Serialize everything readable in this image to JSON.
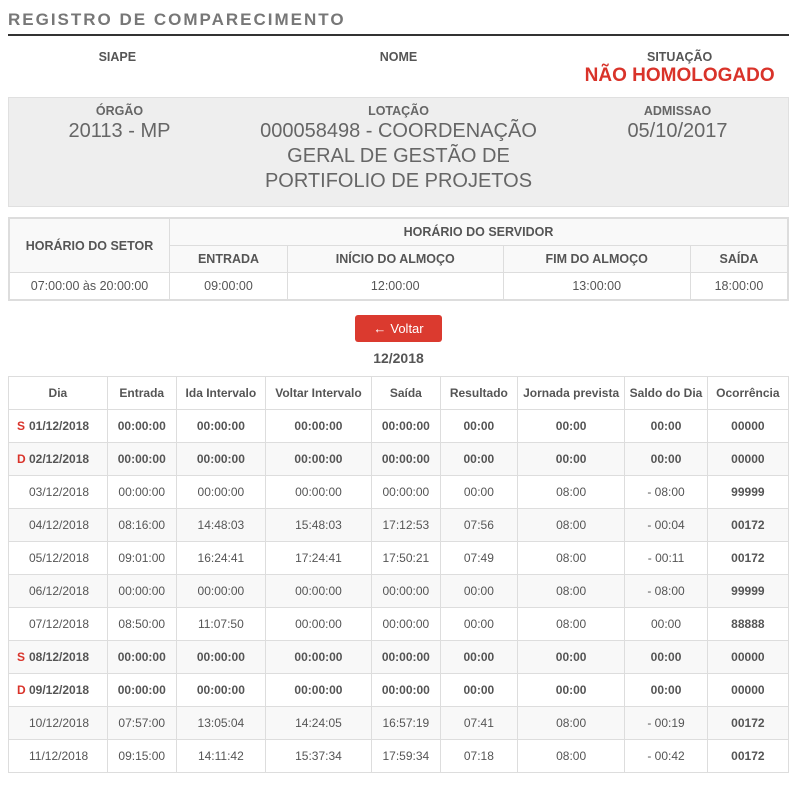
{
  "page_title": "REGISTRO DE COMPARECIMENTO",
  "header": {
    "siape_label": "SIAPE",
    "nome_label": "NOME",
    "situacao_label": "SITUAÇÃO",
    "situacao_value": "NÃO HOMOLOGADO"
  },
  "info": {
    "orgao_label": "ÓRGÃO",
    "orgao_value": "20113 - MP",
    "lotacao_label": "LOTAÇÃO",
    "lotacao_value": "000058498 - COORDENAÇÃO GERAL DE GESTÃO DE PORTIFOLIO DE PROJETOS",
    "admissao_label": "ADMISSAO",
    "admissao_value": "05/10/2017"
  },
  "schedule": {
    "setor_label": "HORÁRIO DO SETOR",
    "servidor_label": "HORÁRIO DO SERVIDOR",
    "cols": {
      "entrada": "ENTRADA",
      "inicio_almoco": "INÍCIO DO ALMOÇO",
      "fim_almoco": "FIM DO ALMOÇO",
      "saida": "SAÍDA"
    },
    "setor_value": "07:00:00 às 20:00:00",
    "values": {
      "entrada": "09:00:00",
      "inicio_almoco": "12:00:00",
      "fim_almoco": "13:00:00",
      "saida": "18:00:00"
    }
  },
  "voltar_label": "Voltar",
  "month": "12/2018",
  "attend": {
    "columns": [
      "Dia",
      "Entrada",
      "Ida Intervalo",
      "Voltar Intervalo",
      "Saída",
      "Resultado",
      "Jornada prevista",
      "Saldo do Dia",
      "Ocorrência"
    ],
    "rows": [
      {
        "mark": "S",
        "date": "01/12/2018",
        "weekend": true,
        "entrada": "00:00:00",
        "ida": "00:00:00",
        "voltar": "00:00:00",
        "saida": "00:00:00",
        "resultado": "00:00",
        "jornada": "00:00",
        "saldo": "00:00",
        "saldo_neg": false,
        "ocorr": "00000",
        "occ_red": false
      },
      {
        "mark": "D",
        "date": "02/12/2018",
        "weekend": true,
        "entrada": "00:00:00",
        "ida": "00:00:00",
        "voltar": "00:00:00",
        "saida": "00:00:00",
        "resultado": "00:00",
        "jornada": "00:00",
        "saldo": "00:00",
        "saldo_neg": false,
        "ocorr": "00000",
        "occ_red": false
      },
      {
        "mark": "",
        "date": "03/12/2018",
        "weekend": false,
        "entrada": "00:00:00",
        "ida": "00:00:00",
        "voltar": "00:00:00",
        "saida": "00:00:00",
        "resultado": "00:00",
        "jornada": "08:00",
        "saldo": "- 08:00",
        "saldo_neg": true,
        "ocorr": "99999",
        "occ_red": true
      },
      {
        "mark": "",
        "date": "04/12/2018",
        "weekend": false,
        "entrada": "08:16:00",
        "ida": "14:48:03",
        "voltar": "15:48:03",
        "saida": "17:12:53",
        "resultado": "07:56",
        "jornada": "08:00",
        "saldo": "- 00:04",
        "saldo_neg": true,
        "ocorr": "00172",
        "occ_red": false
      },
      {
        "mark": "",
        "date": "05/12/2018",
        "weekend": false,
        "entrada": "09:01:00",
        "ida": "16:24:41",
        "voltar": "17:24:41",
        "saida": "17:50:21",
        "resultado": "07:49",
        "jornada": "08:00",
        "saldo": "- 00:11",
        "saldo_neg": true,
        "ocorr": "00172",
        "occ_red": false
      },
      {
        "mark": "",
        "date": "06/12/2018",
        "weekend": false,
        "entrada": "00:00:00",
        "ida": "00:00:00",
        "voltar": "00:00:00",
        "saida": "00:00:00",
        "resultado": "00:00",
        "jornada": "08:00",
        "saldo": "- 08:00",
        "saldo_neg": true,
        "ocorr": "99999",
        "occ_red": true
      },
      {
        "mark": "",
        "date": "07/12/2018",
        "weekend": false,
        "entrada": "08:50:00",
        "ida": "11:07:50",
        "voltar": "00:00:00",
        "saida": "00:00:00",
        "resultado": "00:00",
        "jornada": "08:00",
        "saldo": "00:00",
        "saldo_neg": false,
        "ocorr": "88888",
        "occ_red": true
      },
      {
        "mark": "S",
        "date": "08/12/2018",
        "weekend": true,
        "entrada": "00:00:00",
        "ida": "00:00:00",
        "voltar": "00:00:00",
        "saida": "00:00:00",
        "resultado": "00:00",
        "jornada": "00:00",
        "saldo": "00:00",
        "saldo_neg": false,
        "ocorr": "00000",
        "occ_red": false
      },
      {
        "mark": "D",
        "date": "09/12/2018",
        "weekend": true,
        "entrada": "00:00:00",
        "ida": "00:00:00",
        "voltar": "00:00:00",
        "saida": "00:00:00",
        "resultado": "00:00",
        "jornada": "00:00",
        "saldo": "00:00",
        "saldo_neg": false,
        "ocorr": "00000",
        "occ_red": false
      },
      {
        "mark": "",
        "date": "10/12/2018",
        "weekend": false,
        "entrada": "07:57:00",
        "ida": "13:05:04",
        "voltar": "14:24:05",
        "saida": "16:57:19",
        "resultado": "07:41",
        "jornada": "08:00",
        "saldo": "- 00:19",
        "saldo_neg": true,
        "ocorr": "00172",
        "occ_red": false
      },
      {
        "mark": "",
        "date": "11/12/2018",
        "weekend": false,
        "entrada": "09:15:00",
        "ida": "14:11:42",
        "voltar": "15:37:34",
        "saida": "17:59:34",
        "resultado": "07:18",
        "jornada": "08:00",
        "saldo": "- 00:42",
        "saldo_neg": true,
        "ocorr": "00172",
        "occ_red": false
      }
    ]
  },
  "colors": {
    "red": "#d9332a",
    "blue": "#1b5fbf",
    "border": "#dddddd",
    "graybox": "#eeeeee"
  }
}
